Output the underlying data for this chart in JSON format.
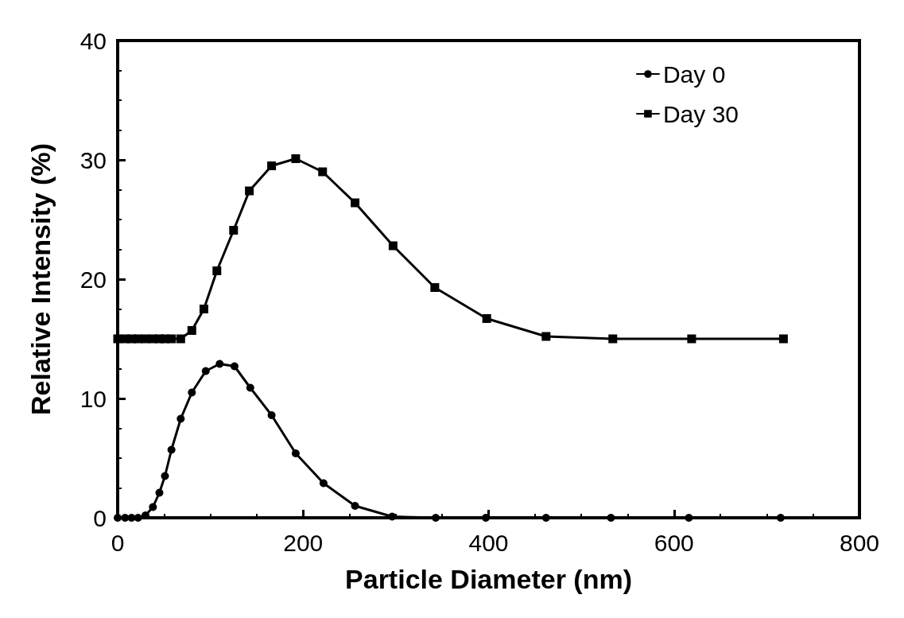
{
  "chart_data": {
    "type": "line",
    "xlabel": "Particle Diameter (nm)",
    "ylabel": "Relative Intensity (%)",
    "xlim": [
      0,
      800
    ],
    "xticks": [
      0,
      200,
      400,
      600,
      800
    ],
    "ylim": [
      0,
      40
    ],
    "yticks": [
      0,
      10,
      20,
      30,
      40
    ],
    "grid": false,
    "legend": "top right",
    "line_style": "solid",
    "series": [
      {
        "name": "Day 0",
        "color": "#000000",
        "marker": "circle",
        "x": [
          0,
          8,
          15,
          22,
          30,
          38,
          45,
          51,
          58,
          68,
          80,
          95,
          110,
          126,
          143,
          166,
          192,
          222,
          256,
          296,
          343,
          397,
          462,
          532,
          616,
          715
        ],
        "values": [
          0,
          0,
          0,
          0,
          0.2,
          0.9,
          2.1,
          3.5,
          5.7,
          8.3,
          10.5,
          12.3,
          12.9,
          12.7,
          10.9,
          8.6,
          5.4,
          2.9,
          1.0,
          0.1,
          0,
          0,
          0,
          0,
          0,
          0
        ]
      },
      {
        "name": "Day 30",
        "color": "#000000",
        "marker": "square",
        "x": [
          0,
          8,
          15,
          22,
          30,
          38,
          45,
          51,
          58,
          68,
          80,
          93,
          107,
          125,
          142,
          166,
          192,
          221,
          256,
          297,
          342,
          398,
          462,
          534,
          619,
          718
        ],
        "values": [
          15,
          15,
          15,
          15,
          15,
          15,
          15,
          15,
          15,
          15,
          15.7,
          17.5,
          20.7,
          24.1,
          27.4,
          29.5,
          30.1,
          29.0,
          26.4,
          22.8,
          19.3,
          16.7,
          15.2,
          15,
          15,
          15
        ]
      }
    ]
  }
}
